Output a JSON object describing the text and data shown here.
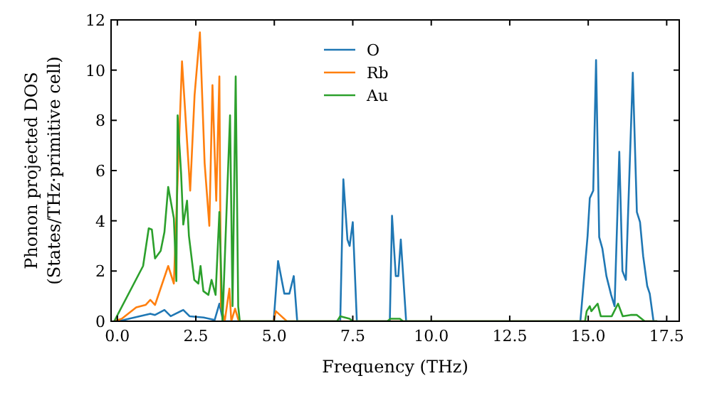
{
  "chart_data": {
    "type": "line",
    "xlabel": "Frequency (THz)",
    "ylabel": "Phonon projected DOS\n(States/THz·primitive cell)",
    "xlim": [
      -0.2,
      17.9
    ],
    "ylim": [
      0,
      12
    ],
    "xticks": [
      {
        "value": 0,
        "label": "0.0"
      },
      {
        "value": 2.5,
        "label": "2.5"
      },
      {
        "value": 5,
        "label": "5.0"
      },
      {
        "value": 7.5,
        "label": "7.5"
      },
      {
        "value": 10,
        "label": "10.0"
      },
      {
        "value": 12.5,
        "label": "12.5"
      },
      {
        "value": 15,
        "label": "15.0"
      },
      {
        "value": 17.5,
        "label": "17.5"
      }
    ],
    "yticks": [
      0,
      2,
      4,
      6,
      8,
      10,
      12
    ],
    "grid": false,
    "legend": "top",
    "marker": "none",
    "line_style": "solid",
    "series": [
      {
        "name": "O",
        "color": "#1f77b4",
        "x": [
          -0.1,
          0.2,
          1.05,
          1.2,
          1.5,
          1.7,
          2.1,
          2.3,
          2.75,
          3.1,
          3.25,
          3.37,
          4.98,
          5.12,
          5.32,
          5.48,
          5.62,
          5.73,
          7.1,
          7.2,
          7.33,
          7.4,
          7.5,
          7.63,
          8.68,
          8.75,
          8.87,
          8.95,
          9.03,
          9.2,
          14.75,
          14.98,
          15.05,
          15.16,
          15.25,
          15.35,
          15.45,
          15.58,
          15.73,
          15.84,
          15.99,
          16.09,
          16.2,
          16.42,
          16.55,
          16.65,
          16.75,
          16.88,
          16.96,
          17.08,
          17.2
        ],
        "values": [
          0,
          0.05,
          0.3,
          0.25,
          0.45,
          0.2,
          0.45,
          0.2,
          0.15,
          0.05,
          0.7,
          0,
          0,
          2.4,
          1.1,
          1.1,
          1.8,
          0,
          0,
          5.65,
          3.25,
          3.0,
          3.95,
          0,
          0,
          4.2,
          1.8,
          1.8,
          3.25,
          0,
          0,
          3.4,
          4.9,
          5.2,
          10.4,
          3.35,
          2.9,
          1.8,
          1.05,
          0.6,
          6.75,
          2.0,
          1.65,
          9.9,
          4.35,
          3.95,
          2.6,
          1.4,
          1.1,
          0,
          0
        ]
      },
      {
        "name": "Rb",
        "color": "#ff7f0e",
        "x": [
          -0.1,
          0.14,
          0.6,
          0.9,
          1.05,
          1.2,
          1.62,
          1.8,
          2.06,
          2.32,
          2.46,
          2.63,
          2.78,
          2.93,
          3.03,
          3.15,
          3.25,
          3.3,
          3.42,
          3.57,
          3.63,
          3.75,
          3.87,
          4.98,
          5.05,
          5.4,
          17.2
        ],
        "values": [
          0,
          0.1,
          0.55,
          0.65,
          0.85,
          0.65,
          2.2,
          1.5,
          10.35,
          5.2,
          9.0,
          11.5,
          6.3,
          3.8,
          9.4,
          4.8,
          9.75,
          0.6,
          0,
          1.3,
          0,
          0.5,
          0,
          0,
          0.4,
          0,
          0
        ]
      },
      {
        "name": "Au",
        "color": "#2ca02c",
        "x": [
          -0.1,
          0.82,
          1.0,
          1.1,
          1.2,
          1.38,
          1.5,
          1.62,
          1.8,
          1.88,
          1.92,
          2.03,
          2.1,
          2.22,
          2.28,
          2.45,
          2.58,
          2.65,
          2.74,
          2.9,
          3.0,
          3.13,
          3.25,
          3.35,
          3.59,
          3.67,
          3.77,
          3.85,
          3.9,
          7.0,
          7.1,
          7.4,
          7.5,
          8.6,
          8.7,
          9.0,
          9.1,
          14.9,
          14.95,
          15.05,
          15.1,
          15.3,
          15.4,
          15.75,
          15.95,
          16.1,
          16.35,
          16.55,
          16.8,
          17.2
        ],
        "values": [
          0,
          2.2,
          3.7,
          3.65,
          2.5,
          2.8,
          3.55,
          5.35,
          4.1,
          1.6,
          8.2,
          5.9,
          3.85,
          4.8,
          3.4,
          1.65,
          1.5,
          2.2,
          1.2,
          1.05,
          1.65,
          1.05,
          4.35,
          0,
          8.2,
          0.6,
          9.75,
          0.6,
          0,
          0,
          0.2,
          0.1,
          0,
          0,
          0.1,
          0.1,
          0,
          0,
          0.4,
          0.6,
          0.4,
          0.7,
          0.2,
          0.2,
          0.7,
          0.2,
          0.25,
          0.25,
          0,
          0
        ]
      }
    ]
  }
}
